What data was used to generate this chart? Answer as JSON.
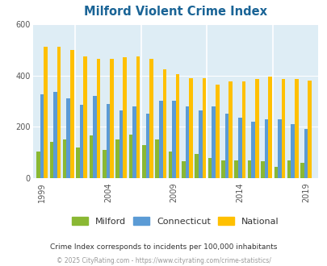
{
  "title": "Milford Violent Crime Index",
  "title_color": "#1a6496",
  "plot_bg_color": "#deedf5",
  "years": [
    1999,
    2000,
    2001,
    2002,
    2003,
    2004,
    2005,
    2006,
    2007,
    2008,
    2009,
    2010,
    2011,
    2012,
    2013,
    2014,
    2015,
    2016,
    2017,
    2018,
    2019
  ],
  "milford": [
    105,
    140,
    150,
    120,
    165,
    110,
    150,
    170,
    130,
    150,
    105,
    65,
    95,
    80,
    70,
    70,
    70,
    65,
    45,
    70,
    60
  ],
  "connecticut": [
    325,
    335,
    310,
    285,
    320,
    290,
    265,
    280,
    250,
    300,
    300,
    280,
    265,
    280,
    250,
    235,
    220,
    230,
    230,
    210,
    190
  ],
  "national": [
    510,
    510,
    500,
    475,
    465,
    465,
    470,
    475,
    465,
    425,
    405,
    390,
    390,
    365,
    375,
    375,
    385,
    395,
    385,
    385,
    380
  ],
  "milford_color": "#8ab833",
  "connecticut_color": "#5b9bd5",
  "national_color": "#ffc000",
  "ylim": [
    0,
    600
  ],
  "yticks": [
    0,
    200,
    400,
    600
  ],
  "xtick_labels": [
    "1999",
    "2004",
    "2009",
    "2014",
    "2019"
  ],
  "xtick_positions": [
    1999,
    2004,
    2009,
    2014,
    2019
  ],
  "bar_width": 0.28,
  "footnote1": "Crime Index corresponds to incidents per 100,000 inhabitants",
  "footnote2": "© 2025 CityRating.com - https://www.cityrating.com/crime-statistics/",
  "legend_labels": [
    "Milford",
    "Connecticut",
    "National"
  ]
}
